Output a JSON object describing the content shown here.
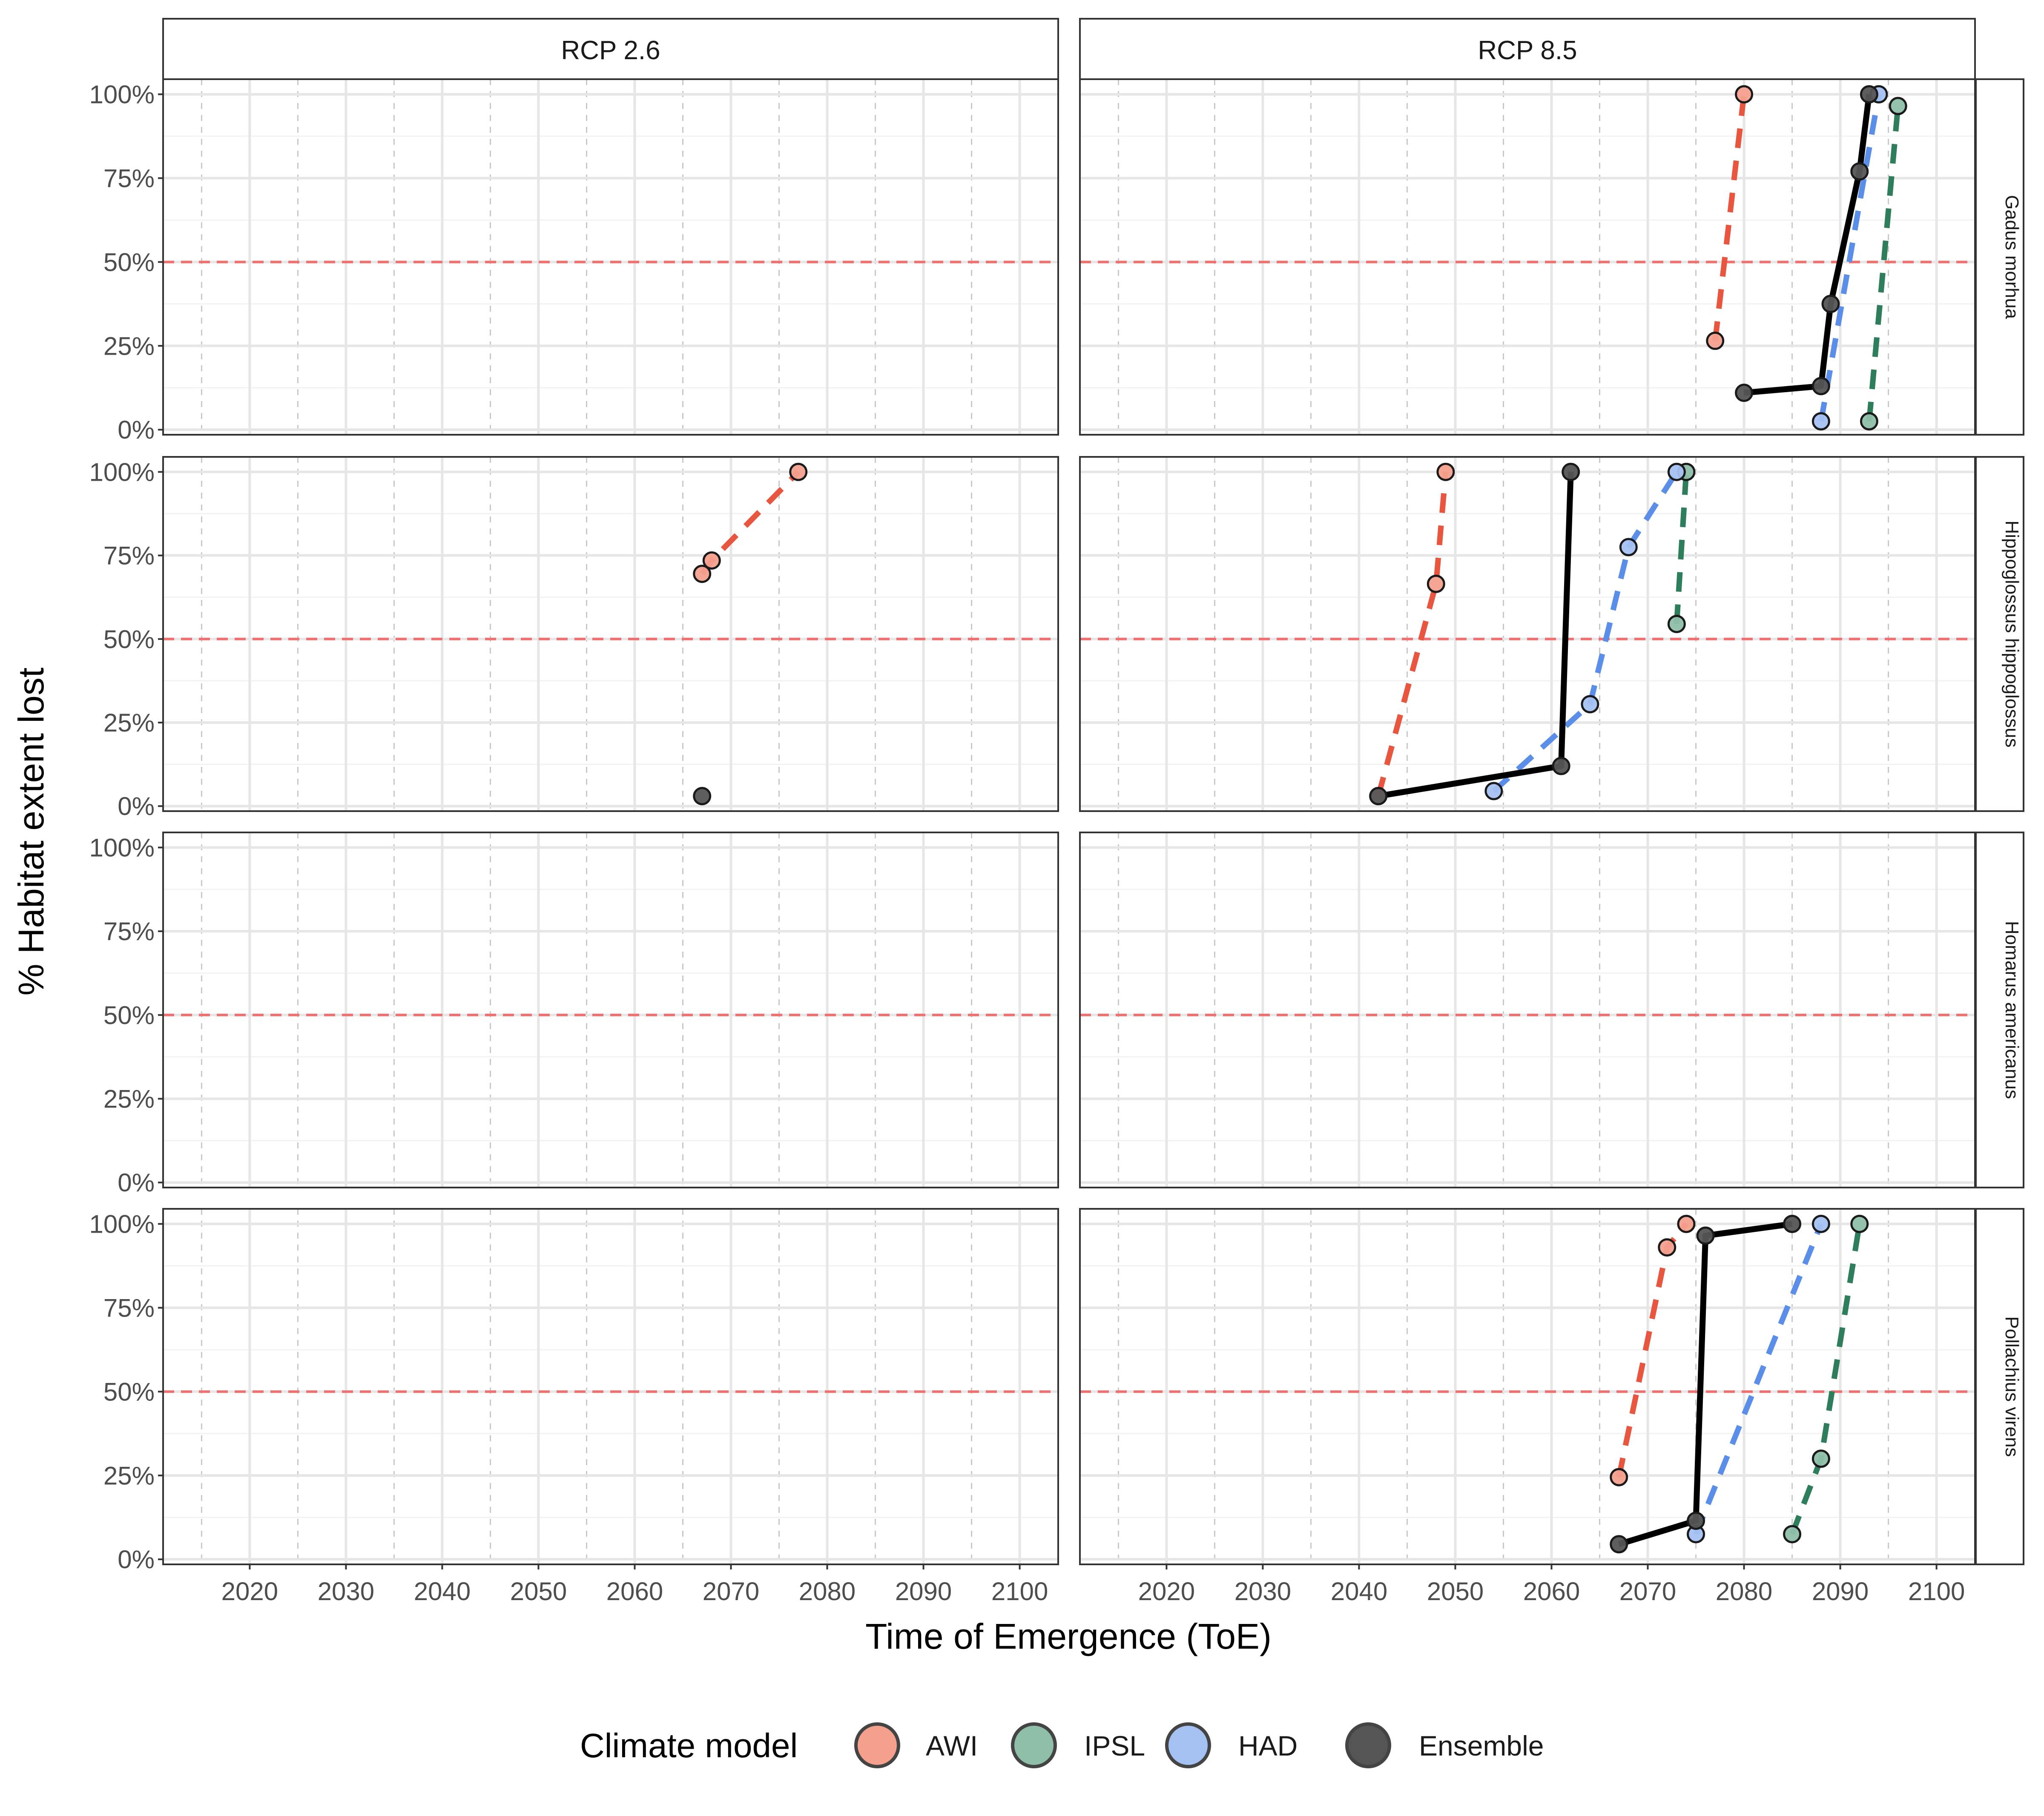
{
  "chart_data": {
    "type": "line",
    "ylabel": "% Habitat extent lost",
    "xlabel": "Time of Emergence (ToE)",
    "facet_columns": [
      "RCP 2.6",
      "RCP 8.5"
    ],
    "facet_rows": [
      "Gadus morhua",
      "Hippoglossus hippoglossus",
      "Homarus americanus",
      "Pollachius virens"
    ],
    "x_ticks": [
      2020,
      2030,
      2040,
      2050,
      2060,
      2070,
      2080,
      2090,
      2100
    ],
    "x_tick_labels": [
      "2020",
      "2030",
      "2040",
      "2050",
      "2060",
      "2070",
      "2080",
      "2090",
      "2100"
    ],
    "y_ticks": [
      0,
      25,
      50,
      75,
      100
    ],
    "y_tick_labels": [
      "0%",
      "25%",
      "50%",
      "75%",
      "100%"
    ],
    "xlim": [
      2011,
      2104
    ],
    "ylim": [
      -1.5,
      104.5
    ],
    "reference_line_y": 50,
    "reference_line_color": "#F07070",
    "legend": {
      "title": "Climate model",
      "position": "bottom",
      "entries": [
        "AWI",
        "IPSL",
        "HAD",
        "Ensemble"
      ]
    },
    "series_colors": {
      "AWI": "#E8563F",
      "IPSL": "#2E7D5B",
      "HAD": "#5B8EE8",
      "Ensemble": "#000000"
    },
    "point_fill_colors": {
      "AWI": "#F4A08D",
      "IPSL": "#8FBFA9",
      "HAD": "#A5C1F2",
      "Ensemble": "#555555"
    },
    "panels": [
      {
        "row": "Gadus morhua",
        "col": "RCP 2.6",
        "series": []
      },
      {
        "row": "Gadus morhua",
        "col": "RCP 8.5",
        "series": [
          {
            "name": "AWI",
            "points": [
              [
                2077,
                26.5
              ],
              [
                2080,
                100
              ]
            ]
          },
          {
            "name": "IPSL",
            "points": [
              [
                2093,
                2.5
              ],
              [
                2096,
                96.5
              ]
            ]
          },
          {
            "name": "HAD",
            "points": [
              [
                2088,
                2.5
              ],
              [
                2094,
                100
              ]
            ]
          },
          {
            "name": "Ensemble",
            "points": [
              [
                2080,
                11
              ],
              [
                2088,
                13
              ],
              [
                2089,
                37.5
              ],
              [
                2092,
                77
              ],
              [
                2093,
                100
              ]
            ]
          }
        ]
      },
      {
        "row": "Hippoglossus hippoglossus",
        "col": "RCP 2.6",
        "series": [
          {
            "name": "AWI",
            "points": [
              [
                2067,
                69.5
              ],
              [
                2068,
                73.5
              ],
              [
                2077,
                100
              ]
            ]
          },
          {
            "name": "Ensemble",
            "points": [
              [
                2067,
                3
              ]
            ]
          }
        ]
      },
      {
        "row": "Hippoglossus hippoglossus",
        "col": "RCP 8.5",
        "series": [
          {
            "name": "AWI",
            "points": [
              [
                2042,
                3
              ],
              [
                2048,
                66.5
              ],
              [
                2049,
                100
              ]
            ]
          },
          {
            "name": "IPSL",
            "points": [
              [
                2073,
                54.5
              ],
              [
                2074,
                100
              ]
            ]
          },
          {
            "name": "HAD",
            "points": [
              [
                2054,
                4.5
              ],
              [
                2064,
                30.5
              ],
              [
                2068,
                77.5
              ],
              [
                2073,
                100
              ]
            ]
          },
          {
            "name": "Ensemble",
            "points": [
              [
                2042,
                3
              ],
              [
                2061,
                12
              ],
              [
                2062,
                100
              ]
            ]
          }
        ]
      },
      {
        "row": "Homarus americanus",
        "col": "RCP 2.6",
        "series": []
      },
      {
        "row": "Homarus americanus",
        "col": "RCP 8.5",
        "series": []
      },
      {
        "row": "Pollachius virens",
        "col": "RCP 2.6",
        "series": []
      },
      {
        "row": "Pollachius virens",
        "col": "RCP 8.5",
        "series": [
          {
            "name": "AWI",
            "points": [
              [
                2067,
                24.5
              ],
              [
                2072,
                93
              ],
              [
                2074,
                100
              ]
            ]
          },
          {
            "name": "IPSL",
            "points": [
              [
                2085,
                7.5
              ],
              [
                2088,
                30
              ],
              [
                2092,
                100
              ]
            ]
          },
          {
            "name": "HAD",
            "points": [
              [
                2075,
                7.5
              ],
              [
                2088,
                100
              ]
            ]
          },
          {
            "name": "Ensemble",
            "points": [
              [
                2067,
                4.5
              ],
              [
                2075,
                11.5
              ],
              [
                2076,
                96.5
              ],
              [
                2085,
                100
              ]
            ]
          }
        ]
      }
    ]
  }
}
